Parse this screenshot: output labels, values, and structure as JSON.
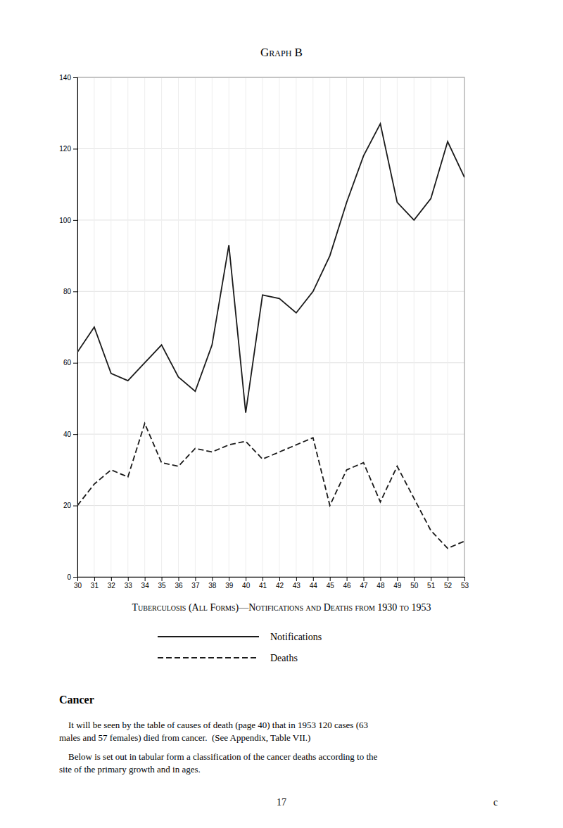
{
  "chart_data": {
    "type": "line",
    "title": "Graph B",
    "subtitle": "Tuberculosis (All Forms)—Notifications and Deaths from 1930 to 1953",
    "x": [
      1930,
      1931,
      1932,
      1933,
      1934,
      1935,
      1936,
      1937,
      1938,
      1939,
      1940,
      1941,
      1942,
      1943,
      1944,
      1945,
      1946,
      1947,
      1948,
      1949,
      1950,
      1951,
      1952,
      1953
    ],
    "series": [
      {
        "name": "Notifications",
        "color": "#1a1a1a",
        "line_style": "solid",
        "values": [
          63,
          70,
          57,
          55,
          60,
          65,
          56,
          52,
          65,
          93,
          46,
          79,
          78,
          74,
          80,
          90,
          105,
          118,
          127,
          105,
          100,
          106,
          122,
          112
        ]
      },
      {
        "name": "Deaths",
        "color": "#1a1a1a",
        "line_style": "dashed",
        "values": [
          20,
          26,
          30,
          28,
          43,
          32,
          31,
          36,
          35,
          37,
          38,
          33,
          35,
          37,
          39,
          20,
          30,
          32,
          21,
          31,
          22,
          13,
          8,
          10
        ]
      }
    ],
    "xlim": [
      1930,
      1953
    ],
    "xticks": [
      {
        "value": 1930,
        "label": "30"
      },
      {
        "value": 1931,
        "label": "31"
      },
      {
        "value": 1932,
        "label": "32"
      },
      {
        "value": 1933,
        "label": "33"
      },
      {
        "value": 1934,
        "label": "34"
      },
      {
        "value": 1935,
        "label": "35"
      },
      {
        "value": 1936,
        "label": "36"
      },
      {
        "value": 1937,
        "label": "37"
      },
      {
        "value": 1938,
        "label": "38"
      },
      {
        "value": 1939,
        "label": "39"
      },
      {
        "value": 1940,
        "label": "40"
      },
      {
        "value": 1941,
        "label": "41"
      },
      {
        "value": 1942,
        "label": "42"
      },
      {
        "value": 1943,
        "label": "43"
      },
      {
        "value": 1944,
        "label": "44"
      },
      {
        "value": 1945,
        "label": "45"
      },
      {
        "value": 1946,
        "label": "46"
      },
      {
        "value": 1947,
        "label": "47"
      },
      {
        "value": 1948,
        "label": "48"
      },
      {
        "value": 1949,
        "label": "49"
      },
      {
        "value": 1950,
        "label": "50"
      },
      {
        "value": 1951,
        "label": "51"
      },
      {
        "value": 1952,
        "label": "52"
      },
      {
        "value": 1953,
        "label": "53"
      }
    ],
    "ylim": [
      0,
      140
    ],
    "yticks": [
      0,
      20,
      40,
      60,
      80,
      100,
      120,
      140
    ],
    "grid": true,
    "legend": "bottom",
    "annotations": [
      "Cancer",
      "    It will be seen by the table of causes of death (page 40) that in 1953 120 cases (63\nmales and 57 females) died from cancer.  (See Appendix, Table VII.)",
      "    Below is set out in tabular form a classification of the cancer deaths according to the\nsite of the primary growth and in ages.",
      "17",
      "c"
    ]
  }
}
